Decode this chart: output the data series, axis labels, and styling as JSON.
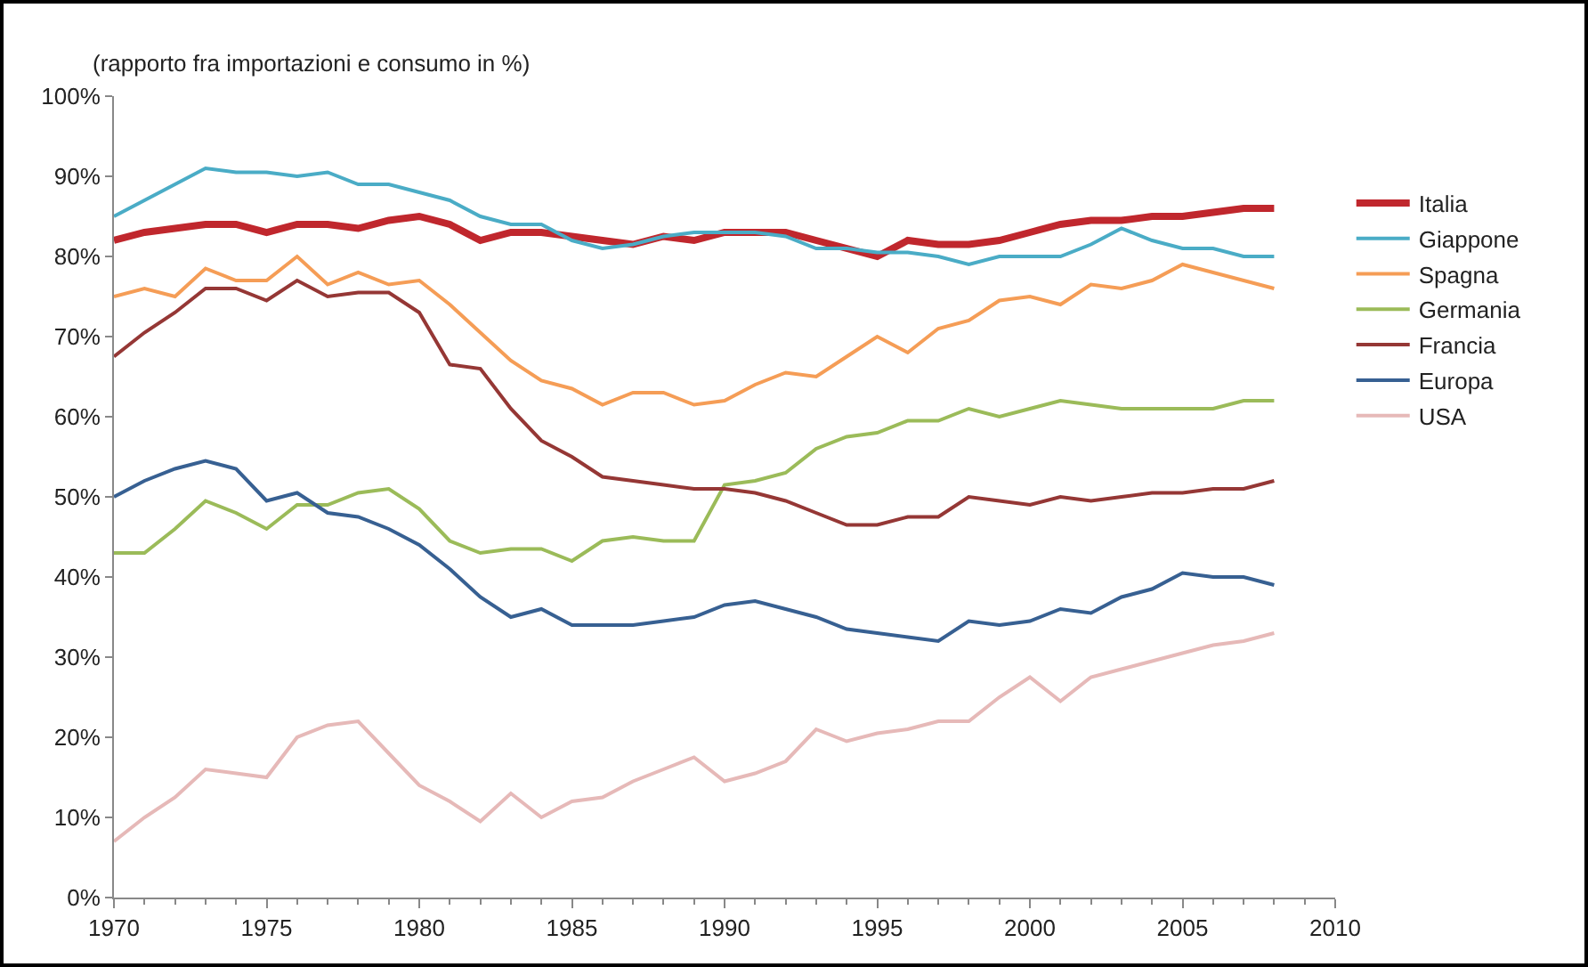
{
  "chart_data": {
    "type": "line",
    "ylabel": "(rapporto fra importazioni e consumo in %)",
    "x": [
      1970,
      1971,
      1972,
      1973,
      1974,
      1975,
      1976,
      1977,
      1978,
      1979,
      1980,
      1981,
      1982,
      1983,
      1984,
      1985,
      1986,
      1987,
      1988,
      1989,
      1990,
      1991,
      1992,
      1993,
      1994,
      1995,
      1996,
      1997,
      1998,
      1999,
      2000,
      2001,
      2002,
      2003,
      2004,
      2005,
      2006,
      2007,
      2008
    ],
    "series": [
      {
        "name": "Italia",
        "color": "#c0272d",
        "values": [
          82,
          83,
          83.5,
          84,
          84,
          83,
          84,
          84,
          83.5,
          84.5,
          85,
          84,
          82,
          83,
          83,
          82.5,
          82,
          81.5,
          82.5,
          82,
          83,
          83,
          83,
          82,
          81,
          80,
          82,
          81.5,
          81.5,
          82,
          83,
          84,
          84.5,
          84.5,
          85,
          85,
          85.5,
          86,
          86
        ]
      },
      {
        "name": "Giappone",
        "color": "#4aacc6",
        "values": [
          85,
          87,
          89,
          91,
          90.5,
          90.5,
          90,
          90.5,
          89,
          89,
          88,
          87,
          85,
          84,
          84,
          82,
          81,
          81.5,
          82.5,
          83,
          83,
          83,
          82.5,
          81,
          81,
          80.5,
          80.5,
          80,
          79,
          80,
          80,
          80,
          81.5,
          83.5,
          82,
          81,
          81,
          80,
          80
        ]
      },
      {
        "name": "Spagna",
        "color": "#f59d56",
        "values": [
          75,
          76,
          75,
          78.5,
          77,
          77,
          80,
          76.5,
          78,
          76.5,
          77,
          74,
          70.5,
          67,
          64.5,
          63.5,
          61.5,
          63,
          63,
          61.5,
          62,
          64,
          65.5,
          65,
          67.5,
          70,
          68,
          71,
          72,
          74.5,
          75,
          74,
          76.5,
          76,
          77,
          79,
          78,
          77,
          76
        ]
      },
      {
        "name": "Germania",
        "color": "#9bbb59",
        "values": [
          43,
          43,
          46,
          49.5,
          48,
          46,
          49,
          49,
          50.5,
          51,
          48.5,
          44.5,
          43,
          43.5,
          43.5,
          42,
          44.5,
          45,
          44.5,
          44.5,
          51.5,
          52,
          53,
          56,
          57.5,
          58,
          59.5,
          59.5,
          61,
          60,
          61,
          62,
          61.5,
          61,
          61,
          61,
          61,
          62,
          62
        ]
      },
      {
        "name": "Francia",
        "color": "#953735",
        "values": [
          67.5,
          70.5,
          73,
          76,
          76,
          74.5,
          77,
          75,
          75.5,
          75.5,
          73,
          66.5,
          66,
          61,
          57,
          55,
          52.5,
          52,
          51.5,
          51,
          51,
          50.5,
          49.5,
          48,
          46.5,
          46.5,
          47.5,
          47.5,
          50,
          49.5,
          49,
          50,
          49.5,
          50,
          50.5,
          50.5,
          51,
          51,
          52
        ]
      },
      {
        "name": "Europa",
        "color": "#376092",
        "values": [
          50,
          52,
          53.5,
          54.5,
          53.5,
          49.5,
          50.5,
          48,
          47.5,
          46,
          44,
          41,
          37.5,
          35,
          36,
          34,
          34,
          34,
          34.5,
          35,
          36.5,
          37,
          36,
          35,
          33.5,
          33,
          32.5,
          32,
          34.5,
          34,
          34.5,
          36,
          35.5,
          37.5,
          38.5,
          40.5,
          40,
          40,
          39
        ]
      },
      {
        "name": "USA",
        "color": "#e6b9b8",
        "values": [
          7,
          10,
          12.5,
          16,
          15.5,
          15,
          20,
          21.5,
          22,
          18,
          14,
          12,
          9.5,
          13,
          10,
          12,
          12.5,
          14.5,
          16,
          17.5,
          14.5,
          15.5,
          17,
          21,
          19.5,
          20.5,
          21,
          22,
          22,
          25,
          27.5,
          24.5,
          27.5,
          28.5,
          29.5,
          30.5,
          31.5,
          32,
          33
        ]
      }
    ],
    "xlim": [
      1970,
      2010
    ],
    "xticks": [
      1970,
      1975,
      1980,
      1985,
      1990,
      1995,
      2000,
      2005,
      2010
    ],
    "ylim": [
      0,
      100
    ],
    "yticks": [
      {
        "value": 0,
        "label": "0%"
      },
      {
        "value": 10,
        "label": "10%"
      },
      {
        "value": 20,
        "label": "20%"
      },
      {
        "value": 30,
        "label": "30%"
      },
      {
        "value": 40,
        "label": "40%"
      },
      {
        "value": 50,
        "label": "50%"
      },
      {
        "value": 60,
        "label": "60%"
      },
      {
        "value": 70,
        "label": "70%"
      },
      {
        "value": 80,
        "label": "80%"
      },
      {
        "value": 90,
        "label": "90%"
      },
      {
        "value": 100,
        "label": "100%"
      }
    ],
    "grid": false,
    "legend": "right",
    "marker": "none",
    "line_style": "solid"
  }
}
